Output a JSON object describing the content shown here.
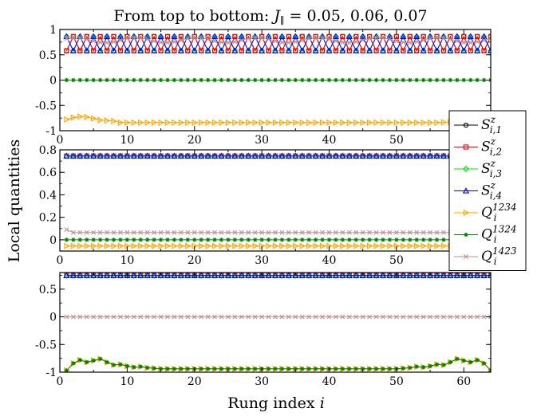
{
  "chart_data": {
    "type": "line",
    "title": "From top to bottom: J∥ = 0.05, 0.06, 0.07",
    "xlabel": "Rung index i",
    "ylabel": "Local quantities",
    "legend": {
      "placement": "right",
      "entries": [
        {
          "label": "S^z_{i,1}",
          "base": "S",
          "sup": "z",
          "sub": "i,1",
          "color": "#000000",
          "marker": "circle"
        },
        {
          "label": "S^z_{i,2}",
          "base": "S",
          "sup": "z",
          "sub": "i,2",
          "color": "#ff0000",
          "marker": "square"
        },
        {
          "label": "S^z_{i,3}",
          "base": "S",
          "sup": "z",
          "sub": "i,3",
          "color": "#00e000",
          "marker": "diamond"
        },
        {
          "label": "S^z_{i,4}",
          "base": "S",
          "sup": "z",
          "sub": "i,4",
          "color": "#0000ff",
          "marker": "triangle-up"
        },
        {
          "label": "Q_i^{1234}",
          "base": "Q",
          "sup": "1234",
          "sub": "i",
          "color": "#ffa500",
          "marker": "triangle-right"
        },
        {
          "label": "Q_i^{1324}",
          "base": "Q",
          "sup": "1324",
          "sub": "i",
          "color": "#008000",
          "marker": "star"
        },
        {
          "label": "Q_i^{1423}",
          "base": "Q",
          "sup": "1423",
          "sub": "i",
          "color": "#bc8f8f",
          "marker": "x"
        }
      ]
    },
    "panels": [
      {
        "J_parallel": 0.05,
        "ylim": [
          -1,
          1
        ],
        "yticks": [
          {
            "v": 1,
            "label": "1"
          },
          {
            "v": 0.5,
            "label": "0.5"
          },
          {
            "v": 0,
            "label": "0"
          },
          {
            "v": -0.5,
            "label": "-0.5"
          },
          {
            "v": -1,
            "label": "-1"
          }
        ],
        "xticks": [
          0,
          10,
          20,
          30,
          40,
          50
        ],
        "series": [
          {
            "key": "S1",
            "model": "alt",
            "base": 0.72,
            "amp": 0.14,
            "phase": 0
          },
          {
            "key": "S2",
            "model": "alt",
            "base": 0.72,
            "amp": 0.14,
            "phase": 0
          },
          {
            "key": "S3",
            "model": "alt",
            "base": 0.72,
            "amp": 0.14,
            "phase": 1
          },
          {
            "key": "S4",
            "model": "alt",
            "base": 0.72,
            "amp": 0.14,
            "phase": 1
          },
          {
            "key": "Q1234",
            "model": "edge_top",
            "base": -0.84,
            "edge_start": [
              -0.78,
              -0.74,
              -0.72,
              -0.73,
              -0.76,
              -0.79,
              -0.8,
              -0.81
            ],
            "edge_end_val": -0.79
          },
          {
            "key": "Q1324",
            "model": "const",
            "base": 0.0
          },
          {
            "key": "Q1423",
            "model": "wobble",
            "base": 0.79,
            "amp": 0.05,
            "period": 9
          }
        ]
      },
      {
        "J_parallel": 0.06,
        "ylim": [
          -0.1,
          0.8
        ],
        "yticks": [
          {
            "v": 0.8,
            "label": "0.8"
          },
          {
            "v": 0.6,
            "label": "0.6"
          },
          {
            "v": 0.4,
            "label": "0.4"
          },
          {
            "v": 0.2,
            "label": "0.2"
          },
          {
            "v": 0,
            "label": "0"
          }
        ],
        "xticks": [
          0,
          10,
          20,
          30,
          40,
          50
        ],
        "series": [
          {
            "key": "S1",
            "model": "const",
            "base": 0.745
          },
          {
            "key": "S2",
            "model": "const",
            "base": 0.745
          },
          {
            "key": "S3",
            "model": "const",
            "base": 0.745
          },
          {
            "key": "S4",
            "model": "const",
            "base": 0.745
          },
          {
            "key": "Q1234",
            "model": "const",
            "base": -0.055
          },
          {
            "key": "Q1324",
            "model": "const",
            "base": 0.0
          },
          {
            "key": "Q1423",
            "model": "edge_mid",
            "base": 0.065,
            "edge_start_val": 0.09
          }
        ]
      },
      {
        "J_parallel": 0.07,
        "ylim": [
          -1,
          0.8
        ],
        "yticks": [
          {
            "v": 0.5,
            "label": "0.5"
          },
          {
            "v": 0,
            "label": "0"
          },
          {
            "v": -0.5,
            "label": "-0.5"
          },
          {
            "v": -1,
            "label": "-1"
          }
        ],
        "xticks": [
          0,
          10,
          20,
          30,
          40,
          50,
          60
        ],
        "series": [
          {
            "key": "S1",
            "model": "const",
            "base": 0.745
          },
          {
            "key": "S2",
            "model": "const",
            "base": 0.745
          },
          {
            "key": "S3",
            "model": "const",
            "base": 0.745
          },
          {
            "key": "S4",
            "model": "const",
            "base": 0.745
          },
          {
            "key": "Q1234",
            "model": "edge_bottom",
            "base": -0.94,
            "edge": [
              -0.97,
              -0.84,
              -0.78,
              -0.82,
              -0.79,
              -0.76,
              -0.82,
              -0.87,
              -0.86,
              -0.89,
              -0.91,
              -0.9,
              -0.92,
              -0.93
            ]
          },
          {
            "key": "Q1324",
            "model": "edge_bottom",
            "base": -0.94,
            "edge": [
              -0.97,
              -0.84,
              -0.78,
              -0.82,
              -0.79,
              -0.76,
              -0.82,
              -0.87,
              -0.86,
              -0.89,
              -0.91,
              -0.9,
              -0.92,
              -0.93
            ]
          },
          {
            "key": "Q1423",
            "model": "const",
            "base": 0.0
          }
        ]
      }
    ],
    "x_points": 64
  }
}
